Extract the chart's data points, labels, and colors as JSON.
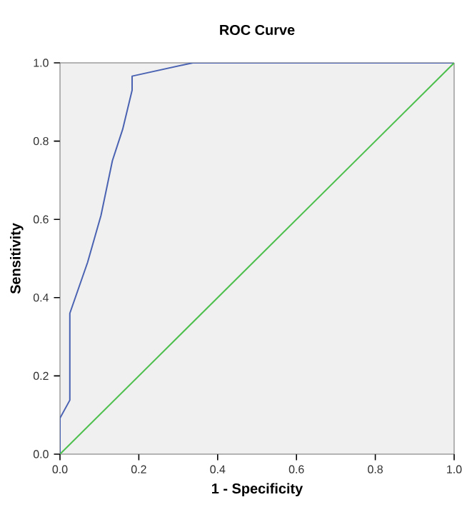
{
  "chart_data": {
    "type": "line",
    "title": "ROC Curve",
    "xlabel": "1 - Specificity",
    "ylabel": "Sensitivity",
    "xlim": [
      0,
      1
    ],
    "ylim": [
      0,
      1
    ],
    "xticks": [
      {
        "value": 0,
        "label": "0.0"
      },
      {
        "value": 0.2,
        "label": "0.2"
      },
      {
        "value": 0.4,
        "label": "0.4"
      },
      {
        "value": 0.6,
        "label": "0.6"
      },
      {
        "value": 0.8,
        "label": "0.8"
      },
      {
        "value": 1,
        "label": "1.0"
      }
    ],
    "yticks": [
      {
        "value": 0,
        "label": "0.0"
      },
      {
        "value": 0.2,
        "label": "0.2"
      },
      {
        "value": 0.4,
        "label": "0.4"
      },
      {
        "value": 0.6,
        "label": "0.6"
      },
      {
        "value": 0.8,
        "label": "0.8"
      },
      {
        "value": 1,
        "label": "1.0"
      }
    ],
    "grid": false,
    "marker": "none",
    "line_style": "solid",
    "series": [
      {
        "color": "#4a62b2",
        "x": [
          0,
          0,
          0.025,
          0.025,
          0.07,
          0.104,
          0.133,
          0.159,
          0.183,
          0.183,
          0.337,
          1
        ],
        "values": [
          0,
          0.092,
          0.138,
          0.36,
          0.49,
          0.61,
          0.75,
          0.83,
          0.93,
          0.966,
          1,
          1
        ]
      },
      {
        "color": "#4cbf4c",
        "x": [
          0,
          1
        ],
        "values": [
          0,
          1
        ]
      }
    ]
  }
}
